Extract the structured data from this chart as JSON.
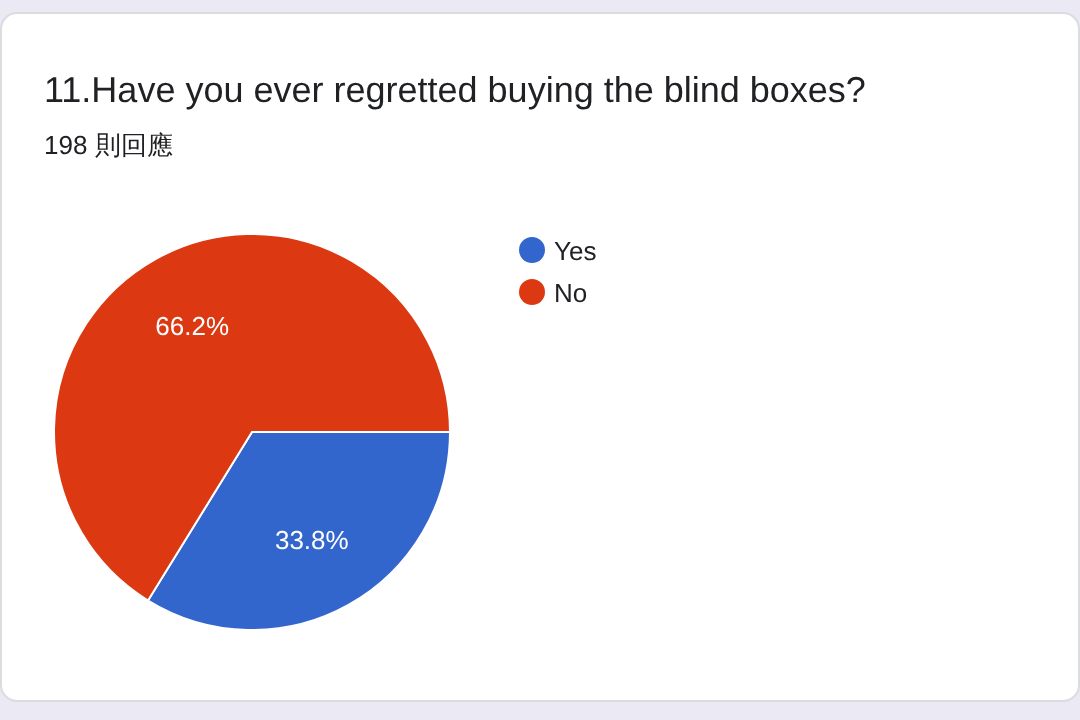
{
  "chart_data": {
    "type": "pie",
    "title": "11.Have you ever regretted buying the blind boxes?",
    "subtitle": "198 則回應",
    "categories": [
      "Yes",
      "No"
    ],
    "values": [
      33.8,
      66.2
    ],
    "colors": [
      "#3366cc",
      "#dc3912"
    ],
    "value_labels": [
      "33.8%",
      "66.2%"
    ],
    "legend": "right"
  }
}
